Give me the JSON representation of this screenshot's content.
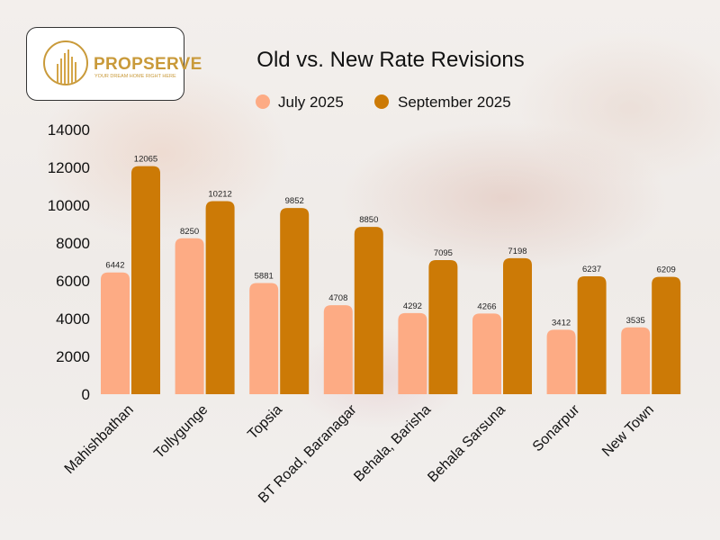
{
  "brand": {
    "name": "PROPSERVE",
    "tagline": "YOUR DREAM HOME RIGHT HERE"
  },
  "chart_data": {
    "type": "bar",
    "title": "Old vs. New Rate Revisions",
    "categories": [
      "Mahishbathan",
      "Tollygunge",
      "Topsia",
      "BT Road, Baranagar",
      "Behala, Barisha",
      "Behala Sarsuna",
      "Sonarpur",
      "New Town"
    ],
    "series": [
      {
        "name": "July 2025",
        "color": "#fdab84",
        "values": [
          6442,
          8250,
          5881,
          4708,
          4292,
          4266,
          3412,
          3535
        ]
      },
      {
        "name": "September 2025",
        "color": "#cc7a06",
        "values": [
          12065,
          10212,
          9852,
          8850,
          7095,
          7198,
          6237,
          6209
        ]
      }
    ],
    "ylim": [
      0,
      14000
    ],
    "yticks": [
      0,
      2000,
      4000,
      6000,
      8000,
      10000,
      12000,
      14000
    ],
    "grid": false,
    "legend": "top",
    "data_labels": true
  }
}
